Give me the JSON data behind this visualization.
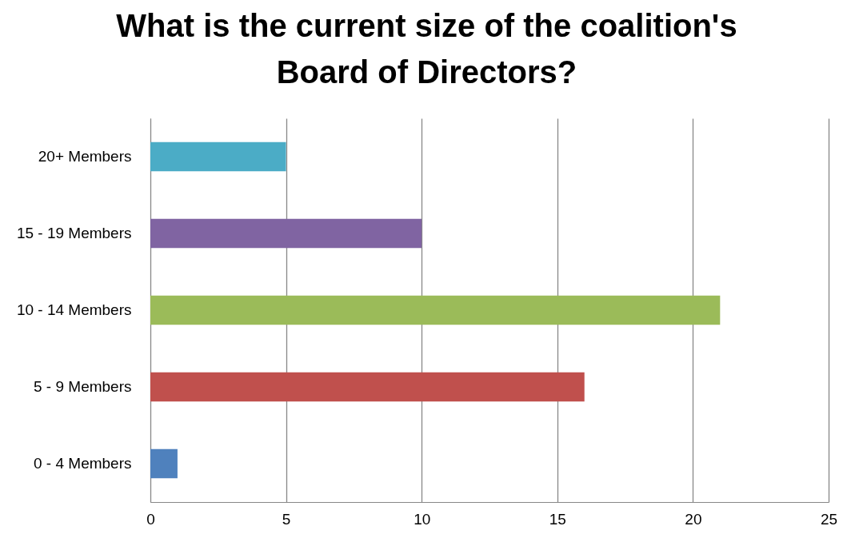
{
  "chart_data": {
    "type": "bar",
    "orientation": "horizontal",
    "title": "What is the current size of the coalition's Board of Directors?",
    "categories": [
      "20+ Members",
      "15 - 19 Members",
      "10 - 14 Members",
      "5 - 9 Members",
      "0 - 4 Members"
    ],
    "values": [
      5,
      10,
      21,
      16,
      1
    ],
    "colors": [
      "#4bacc6",
      "#8064a2",
      "#9bbb59",
      "#c0504d",
      "#4f81bd"
    ],
    "xlim": [
      0,
      25
    ],
    "xticks": [
      0,
      5,
      10,
      15,
      20,
      25
    ],
    "grid": "x"
  }
}
